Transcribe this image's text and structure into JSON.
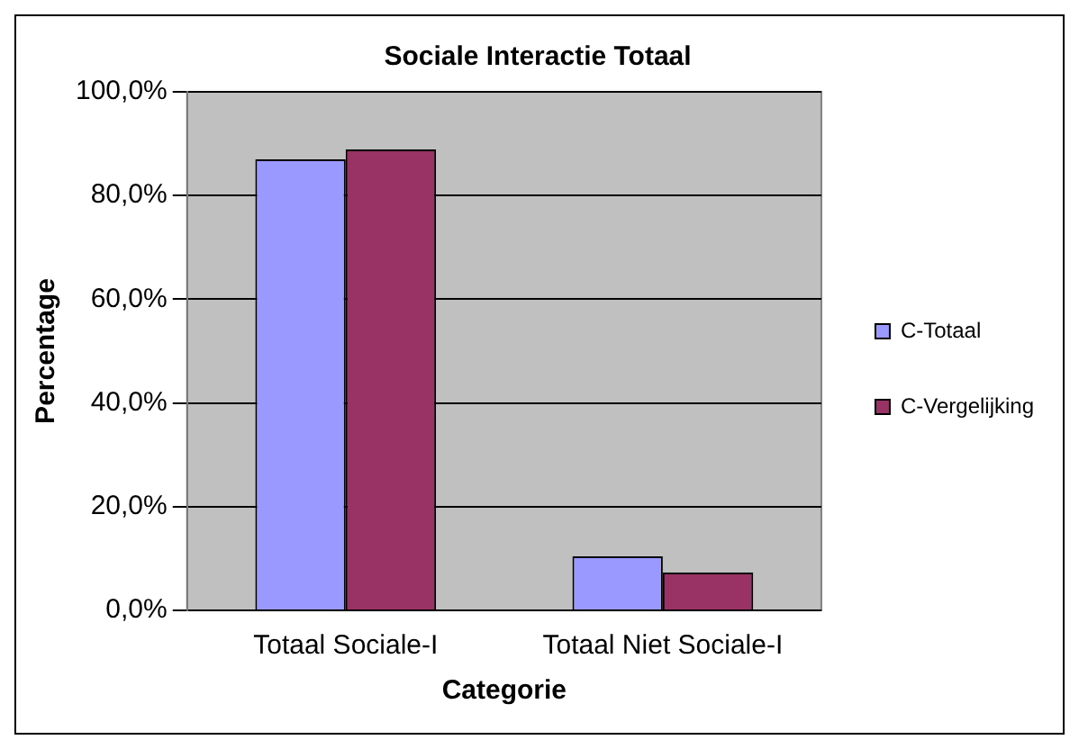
{
  "chart_data": {
    "type": "bar",
    "title": "Sociale Interactie Totaal",
    "xlabel": "Categorie",
    "ylabel": "Percentage",
    "categories": [
      "Totaal Sociale-I",
      "Totaal Niet Sociale-I"
    ],
    "series": [
      {
        "name": "C-Totaal",
        "color": "#9999ff",
        "values": [
          87.0,
          10.4
        ]
      },
      {
        "name": "C-Vergelijking",
        "color": "#993366",
        "values": [
          88.9,
          7.3
        ]
      }
    ],
    "ylim": [
      0,
      100
    ],
    "yticks": [
      {
        "value": 0,
        "label": "0,0%"
      },
      {
        "value": 20,
        "label": "20,0%"
      },
      {
        "value": 40,
        "label": "40,0%"
      },
      {
        "value": 60,
        "label": "60,0%"
      },
      {
        "value": 80,
        "label": "80,0%"
      },
      {
        "value": 100,
        "label": "100,0%"
      }
    ],
    "grid": "y",
    "legend": "right"
  }
}
